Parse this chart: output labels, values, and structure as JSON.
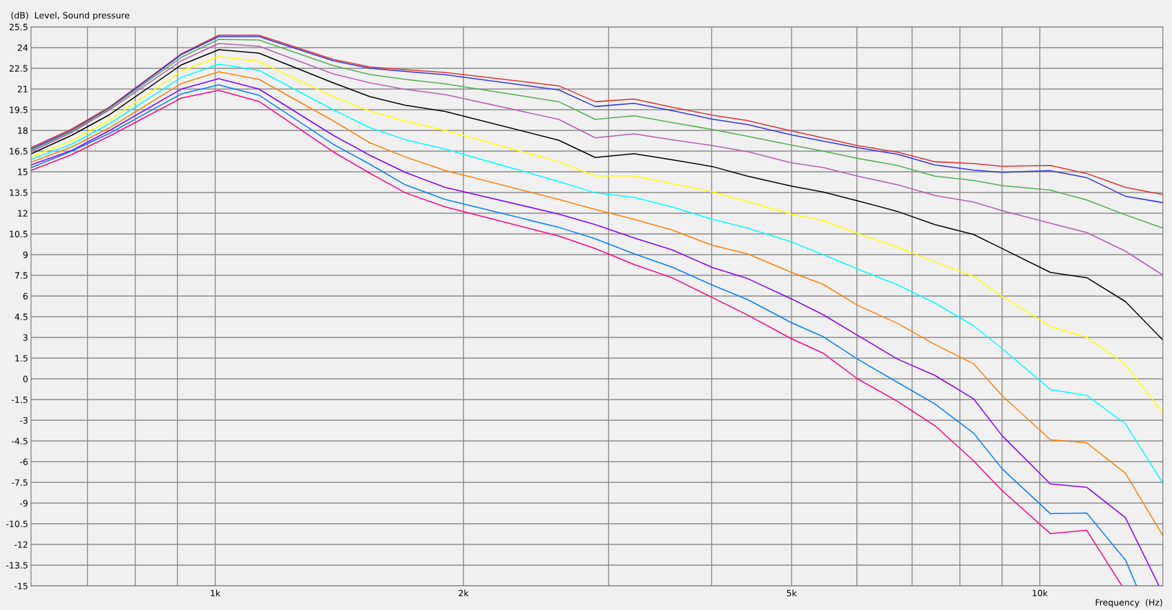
{
  "chart_data": {
    "type": "line",
    "xlabel": "Frequency  (Hz)",
    "ylabel": "(dB)  Level, Sound pressure",
    "log": "x",
    "grid": true,
    "marker": "none",
    "line_style": "solid",
    "x": [
      598,
      670,
      745,
      910,
      1010,
      1130,
      1390,
      1540,
      1700,
      1900,
      2610,
      2890,
      3220,
      3580,
      4010,
      4420,
      5000,
      5460,
      6010,
      6720,
      7460,
      8310,
      9000,
      10300,
      11400,
      12700,
      14100
    ],
    "xlim": [
      598,
      14100
    ],
    "xticks": [
      {
        "value": 700,
        "label": null
      },
      {
        "value": 800,
        "label": null
      },
      {
        "value": 900,
        "label": null
      },
      {
        "value": 1000,
        "label": "1k"
      },
      {
        "value": 2000,
        "label": "2k"
      },
      {
        "value": 3000,
        "label": null
      },
      {
        "value": 4000,
        "label": null
      },
      {
        "value": 5000,
        "label": "5k"
      },
      {
        "value": 6000,
        "label": null
      },
      {
        "value": 7000,
        "label": null
      },
      {
        "value": 8000,
        "label": null
      },
      {
        "value": 9000,
        "label": null
      },
      {
        "value": 10000,
        "label": "10k"
      }
    ],
    "ylim": [
      -15,
      25.5
    ],
    "yticks": [
      -15,
      -13.5,
      -12,
      -10.5,
      -9,
      -7.5,
      -6,
      -4.5,
      -3,
      -1.5,
      0,
      1.5,
      3,
      4.5,
      6,
      7.5,
      9,
      10.5,
      12,
      13.5,
      15,
      16.5,
      18,
      19.5,
      21,
      22.5,
      24,
      25.5
    ],
    "series": [
      {
        "color": "#dd3333",
        "values": [
          16.75,
          18.1,
          19.7,
          23.55,
          24.9,
          24.9,
          23.15,
          22.6,
          22.4,
          22.2,
          21.23,
          20.08,
          20.27,
          19.69,
          19.1,
          18.71,
          17.96,
          17.46,
          16.9,
          16.42,
          15.73,
          15.6,
          15.4,
          15.46,
          14.88,
          13.87,
          13.35
        ]
      },
      {
        "color": "#3333dd",
        "values": [
          16.65,
          18.0,
          19.65,
          23.5,
          24.8,
          24.8,
          23.05,
          22.5,
          22.27,
          22.04,
          20.94,
          19.73,
          19.96,
          19.44,
          18.81,
          18.42,
          17.67,
          17.23,
          16.75,
          16.27,
          15.5,
          15.12,
          14.96,
          15.08,
          14.58,
          13.23,
          12.77
        ]
      },
      {
        "color": "#55aa55",
        "values": [
          16.55,
          17.95,
          19.6,
          23.3,
          24.6,
          24.55,
          22.7,
          22.05,
          21.7,
          21.37,
          20.08,
          18.8,
          19.06,
          18.58,
          18.06,
          17.58,
          16.94,
          16.5,
          15.98,
          15.46,
          14.69,
          14.38,
          14.0,
          13.67,
          12.96,
          11.88,
          10.92
        ]
      },
      {
        "color": "#b060b0",
        "values": [
          16.45,
          17.85,
          19.5,
          23.05,
          24.3,
          24.1,
          22.1,
          21.45,
          20.98,
          20.6,
          18.8,
          17.46,
          17.75,
          17.33,
          16.9,
          16.46,
          15.65,
          15.31,
          14.69,
          14.06,
          13.29,
          12.81,
          12.19,
          11.27,
          10.6,
          9.25,
          7.52
        ]
      },
      {
        "color": "#000000",
        "values": [
          16.3,
          17.65,
          19.15,
          22.75,
          23.85,
          23.6,
          21.45,
          20.45,
          19.83,
          19.38,
          17.29,
          16.04,
          16.31,
          15.88,
          15.38,
          14.69,
          13.96,
          13.54,
          12.9,
          12.13,
          11.17,
          10.46,
          9.44,
          7.71,
          7.33,
          5.6,
          2.81
        ]
      },
      {
        "color": "#ffff00",
        "values": [
          16.08,
          17.27,
          18.75,
          22.3,
          23.35,
          23.0,
          20.45,
          19.4,
          18.67,
          18.0,
          15.73,
          14.7,
          14.7,
          14.15,
          13.54,
          12.85,
          11.94,
          11.46,
          10.54,
          9.54,
          8.48,
          7.42,
          5.98,
          3.79,
          3.02,
          1.05,
          -2.49
        ]
      },
      {
        "color": "#00ffff",
        "values": [
          15.9,
          17.0,
          18.5,
          21.85,
          22.8,
          22.35,
          19.5,
          18.2,
          17.33,
          16.65,
          14.3,
          13.48,
          13.15,
          12.46,
          11.56,
          10.92,
          9.92,
          9.0,
          7.96,
          6.81,
          5.5,
          3.85,
          2.2,
          -0.77,
          -1.21,
          -3.26,
          -7.57
        ]
      },
      {
        "color": "#ff8000",
        "values": [
          15.7,
          16.8,
          18.2,
          21.4,
          22.25,
          21.7,
          18.7,
          17.1,
          16.08,
          15.1,
          13.0,
          12.27,
          11.56,
          10.79,
          9.67,
          9.06,
          7.71,
          6.85,
          5.33,
          4.02,
          2.49,
          1.09,
          -1.21,
          -4.41,
          -4.64,
          -6.84,
          -11.36
        ]
      },
      {
        "color": "#8000ff",
        "x": [
          598,
          670,
          745,
          910,
          1010,
          1130,
          1390,
          1540,
          1700,
          1900,
          2610,
          2890,
          3220,
          3580,
          4010,
          4420,
          5000,
          5460,
          6010,
          6720,
          7460,
          8310,
          9000,
          10300,
          11400,
          12700,
          13950
        ],
        "values": [
          15.5,
          16.55,
          18.0,
          21.0,
          21.75,
          21.0,
          17.65,
          16.2,
          14.96,
          13.87,
          11.94,
          11.17,
          10.21,
          9.35,
          8.06,
          7.27,
          5.79,
          4.65,
          3.16,
          1.43,
          0.25,
          -1.44,
          -4.12,
          -7.61,
          -7.86,
          -10.06,
          -15
        ]
      },
      {
        "color": "#0080ff",
        "x": [
          598,
          670,
          745,
          910,
          1010,
          1130,
          1390,
          1540,
          1700,
          1900,
          2610,
          2890,
          3220,
          3580,
          4010,
          4420,
          5000,
          5460,
          6010,
          6720,
          7460,
          8310,
          9000,
          10300,
          11400,
          12700,
          13100
        ],
        "values": [
          15.3,
          16.5,
          17.8,
          20.65,
          21.3,
          20.55,
          17.0,
          15.55,
          14.06,
          13.0,
          10.98,
          10.15,
          9.06,
          8.1,
          6.79,
          5.75,
          4.06,
          3.06,
          1.43,
          -0.25,
          -1.82,
          -3.93,
          -6.52,
          -9.77,
          -9.73,
          -13.12,
          -15
        ]
      },
      {
        "color": "#ff0080",
        "x": [
          598,
          670,
          745,
          910,
          1010,
          1130,
          1390,
          1540,
          1700,
          1900,
          2610,
          2890,
          3220,
          3580,
          4010,
          4420,
          5000,
          5460,
          6010,
          6720,
          7460,
          8310,
          9000,
          10300,
          11400,
          12580
        ],
        "values": [
          15.1,
          16.25,
          17.6,
          20.35,
          20.9,
          20.1,
          16.45,
          14.9,
          13.48,
          12.46,
          10.35,
          9.44,
          8.29,
          7.33,
          5.88,
          4.63,
          2.9,
          1.86,
          0.0,
          -1.63,
          -3.39,
          -5.94,
          -8.1,
          -11.21,
          -10.98,
          -15
        ]
      }
    ]
  }
}
